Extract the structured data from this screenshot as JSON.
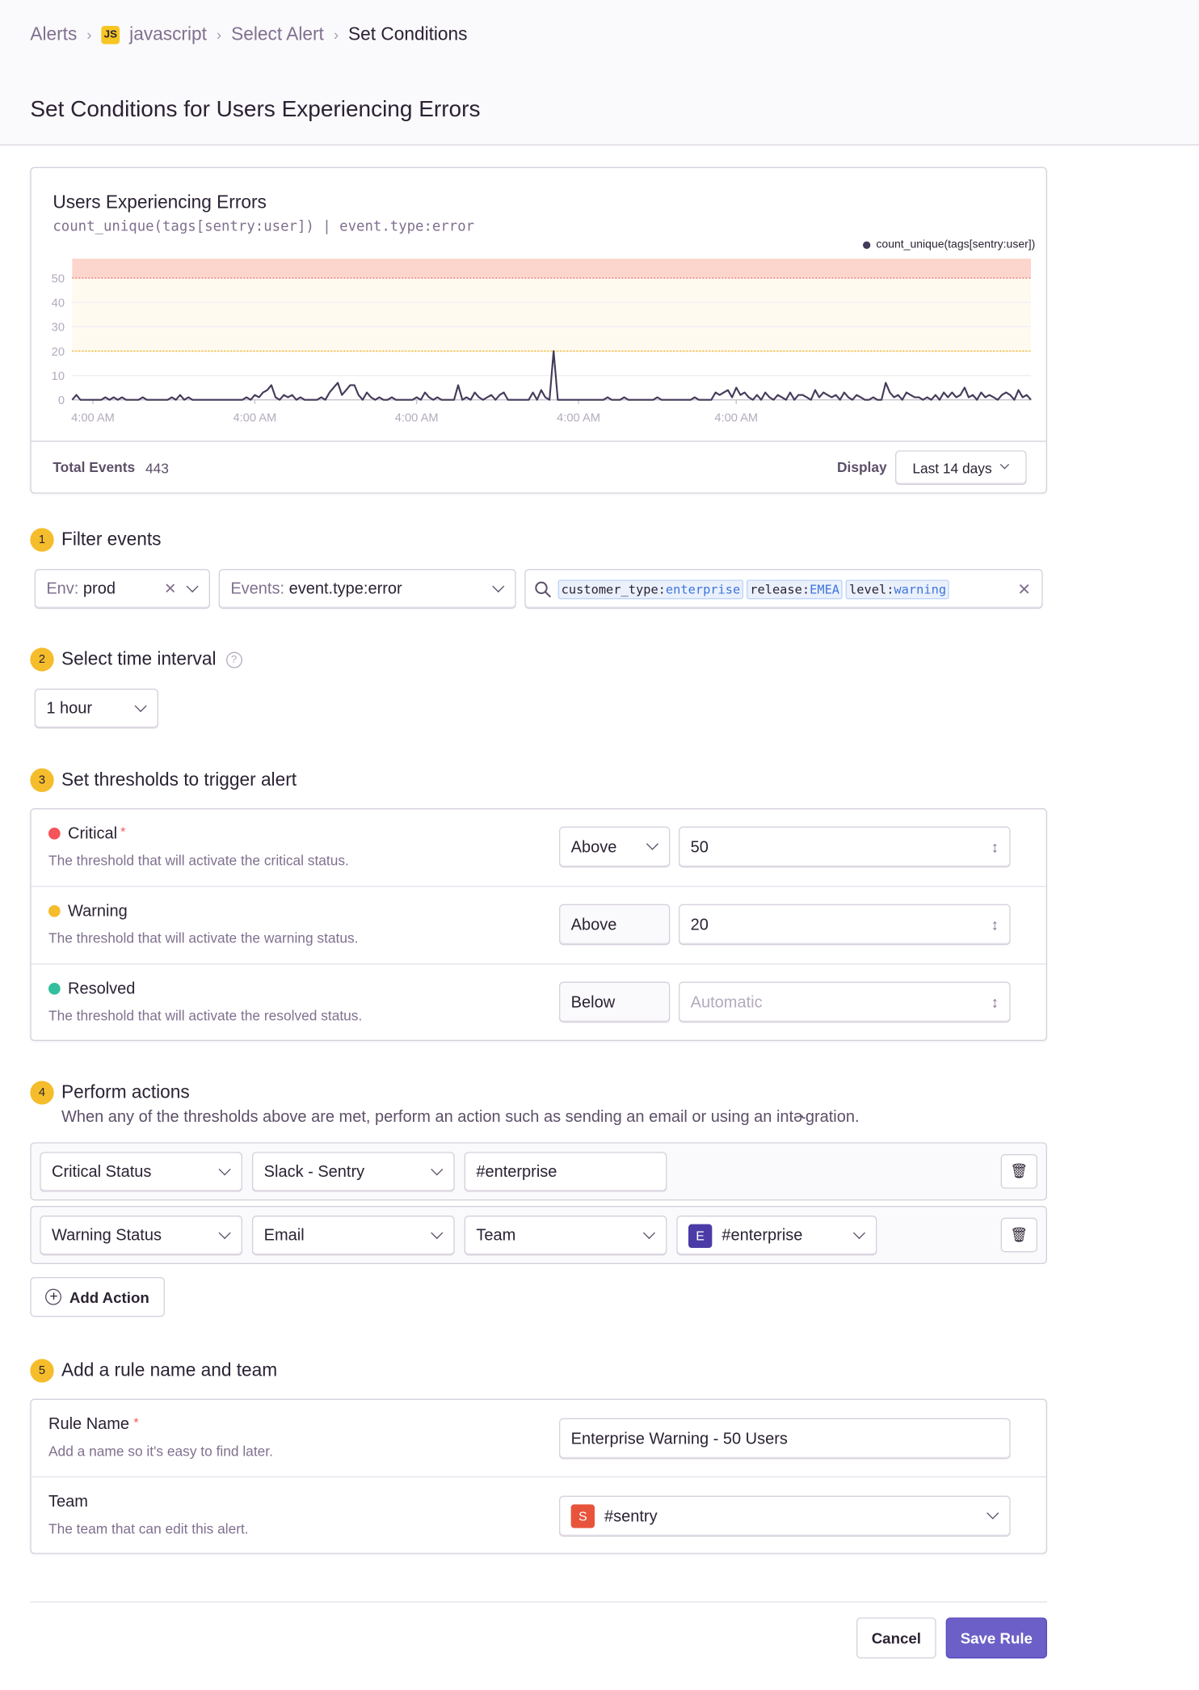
{
  "breadcrumb": {
    "items": [
      "Alerts",
      "javascript",
      "Select Alert",
      "Set Conditions"
    ],
    "project_badge": "JS"
  },
  "page_title": "Set Conditions for Users Experiencing Errors",
  "chart_card": {
    "title": "Users Experiencing Errors",
    "query": "count_unique(tags[sentry:user]) | event.type:error",
    "total_events_label": "Total Events",
    "total_events": "443",
    "display_label": "Display",
    "display_value": "Last 14 days"
  },
  "chart_data": {
    "type": "line",
    "legend": {
      "entries": [
        "count_unique(tags[sentry:user])"
      ],
      "placement": "top-right"
    },
    "ylim": [
      0,
      58
    ],
    "y_ticks": [
      0,
      10,
      20,
      30,
      40,
      50
    ],
    "x_ticks": [
      {
        "index": 5,
        "label": "4:00 AM"
      },
      {
        "index": 44,
        "label": "4:00 AM"
      },
      {
        "index": 83,
        "label": "4:00 AM"
      },
      {
        "index": 122,
        "label": "4:00 AM"
      },
      {
        "index": 160,
        "label": "4:00 AM"
      }
    ],
    "thresholds": {
      "critical": 50,
      "warning": 20
    },
    "series": [
      {
        "name": "count_unique(tags[sentry:user])",
        "color": "#443a59",
        "values": [
          0,
          2,
          0,
          0,
          0,
          0,
          0,
          0,
          1,
          0,
          1,
          0,
          1,
          0,
          0,
          0,
          0,
          1,
          0,
          0,
          0,
          0,
          0,
          0,
          1,
          0,
          2,
          0,
          1,
          0,
          0,
          0,
          0,
          0,
          0,
          0,
          0,
          0,
          0,
          0,
          0,
          0,
          1,
          0,
          2,
          1,
          3,
          4,
          6,
          1,
          0,
          2,
          1,
          2,
          0,
          1,
          0,
          0,
          0,
          0,
          1,
          0,
          3,
          5,
          7,
          2,
          4,
          6,
          6,
          2,
          0,
          3,
          1,
          0,
          1,
          0,
          0,
          1,
          0,
          0,
          0,
          0,
          0,
          1,
          0,
          3,
          1,
          0,
          1,
          0,
          0,
          0,
          0,
          6,
          0,
          1,
          0,
          3,
          1,
          0,
          1,
          2,
          0,
          2,
          3,
          0,
          0,
          0,
          0,
          0,
          0,
          3,
          0,
          4,
          1,
          0,
          20,
          0,
          0,
          0,
          0,
          0,
          0,
          0,
          0,
          0,
          0,
          0,
          0,
          1,
          0,
          0,
          0,
          1,
          0,
          0,
          0,
          0,
          0,
          0,
          0,
          1,
          0,
          0,
          0,
          0,
          0,
          0,
          0,
          0,
          1,
          0,
          0,
          0,
          0,
          3,
          2,
          3,
          4,
          1,
          5,
          2,
          3,
          1,
          0,
          2,
          0,
          3,
          1,
          0,
          2,
          1,
          0,
          3,
          0,
          2,
          2,
          1,
          0,
          4,
          1,
          3,
          2,
          1,
          2,
          0,
          3,
          1,
          0,
          2,
          1,
          0,
          0,
          1,
          0,
          0,
          7,
          3,
          1,
          2,
          0,
          3,
          2,
          1,
          1,
          0,
          1,
          0,
          2,
          0,
          3,
          1,
          3,
          1,
          2,
          5,
          1,
          2,
          0,
          3,
          1,
          2,
          1,
          0,
          2,
          3,
          2,
          0,
          4,
          1,
          2,
          0
        ]
      }
    ]
  },
  "steps": [
    {
      "num": "1",
      "label": "Filter events"
    },
    {
      "num": "2",
      "label": "Select time interval"
    },
    {
      "num": "3",
      "label": "Set thresholds to trigger alert"
    },
    {
      "num": "4",
      "label": "Perform actions",
      "description": "When any of the thresholds above are met, perform an action such as sending an email or using an intɚgration."
    },
    {
      "num": "5",
      "label": "Add a rule name and team"
    }
  ],
  "filters": {
    "env": {
      "prefix": "Env:",
      "value": "prod"
    },
    "events": {
      "prefix": "Events:",
      "value": "event.type:error"
    },
    "search_tags": [
      {
        "key": "customer_type:",
        "value": "enterprise"
      },
      {
        "key": "release:",
        "value": "EMEA"
      },
      {
        "key": "level:",
        "value": "warning"
      }
    ]
  },
  "time_interval": "1 hour",
  "thresholds": [
    {
      "name": "Critical",
      "required": "*",
      "description": "The threshold that will activate the critical status.",
      "comparator": "Above",
      "value": "50",
      "color": "#f55459"
    },
    {
      "name": "Warning",
      "required": "",
      "description": "The threshold that will activate the warning status.",
      "comparator": "Above",
      "value": "20",
      "color": "#f5bd2b"
    },
    {
      "name": "Resolved",
      "required": "",
      "description": "The threshold that will activate the resolved status.",
      "comparator": "Below",
      "placeholder": "Automatic",
      "color": "#33bf9e"
    }
  ],
  "actions": [
    {
      "trigger": "Critical Status",
      "type": "Slack - Sentry",
      "target": "#enterprise"
    },
    {
      "trigger": "Warning Status",
      "type": "Email",
      "target_type": "Team",
      "team_badge": "E",
      "team": "#enterprise"
    }
  ],
  "add_action_label": "Add Action",
  "rule": {
    "name_label": "Rule Name",
    "name_required": "*",
    "name_help": "Add a name so it's easy to find later.",
    "name_value": "Enterprise Warning - 50 Users",
    "team_label": "Team",
    "team_help": "The team that can edit this alert.",
    "team_badge": "S",
    "team_value": "#sentry"
  },
  "buttons": {
    "cancel": "Cancel",
    "save": "Save Rule"
  },
  "colors": {
    "accent": "#6c5fc7",
    "critical": "#f55459",
    "warning": "#f5bd2b",
    "resolved": "#33bf9e",
    "step_badge": "#f5bd2b"
  }
}
